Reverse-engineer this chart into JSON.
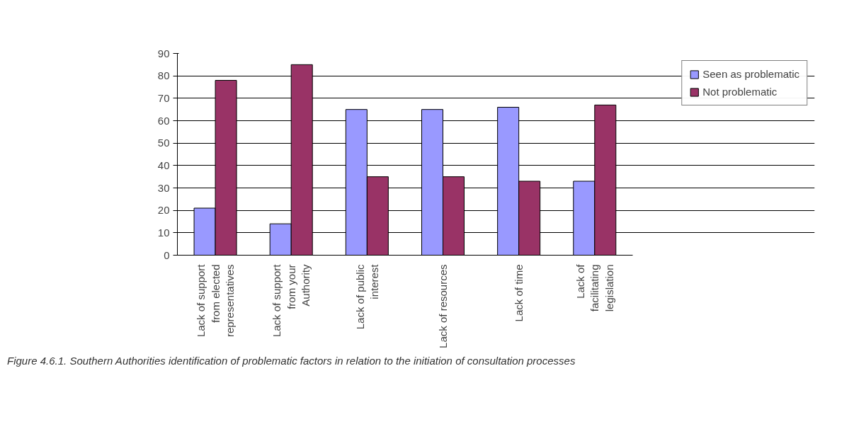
{
  "chart_data": {
    "type": "bar",
    "categories": [
      "Lack of support from elected representatives",
      "Lack of support from your Authority",
      "Lack of public interest",
      "Lack of resources",
      "Lack of time",
      "Lack of facilitating legislation"
    ],
    "series": [
      {
        "name": "Seen as problematic",
        "color": "#9999ff",
        "values": [
          21,
          14,
          65,
          65,
          66,
          33
        ]
      },
      {
        "name": "Not problematic",
        "color": "#993366",
        "values": [
          78,
          85,
          35,
          35,
          33,
          67
        ]
      }
    ],
    "ylim": [
      0,
      90
    ],
    "yticks": [
      0,
      10,
      20,
      30,
      40,
      50,
      60,
      70,
      80,
      90
    ],
    "grid": "y",
    "legend": "top right",
    "annotations": [
      "Figure 4.6.1. Southern Authorities identification of problematic factors in relation to the initiation of consultation processes"
    ]
  }
}
